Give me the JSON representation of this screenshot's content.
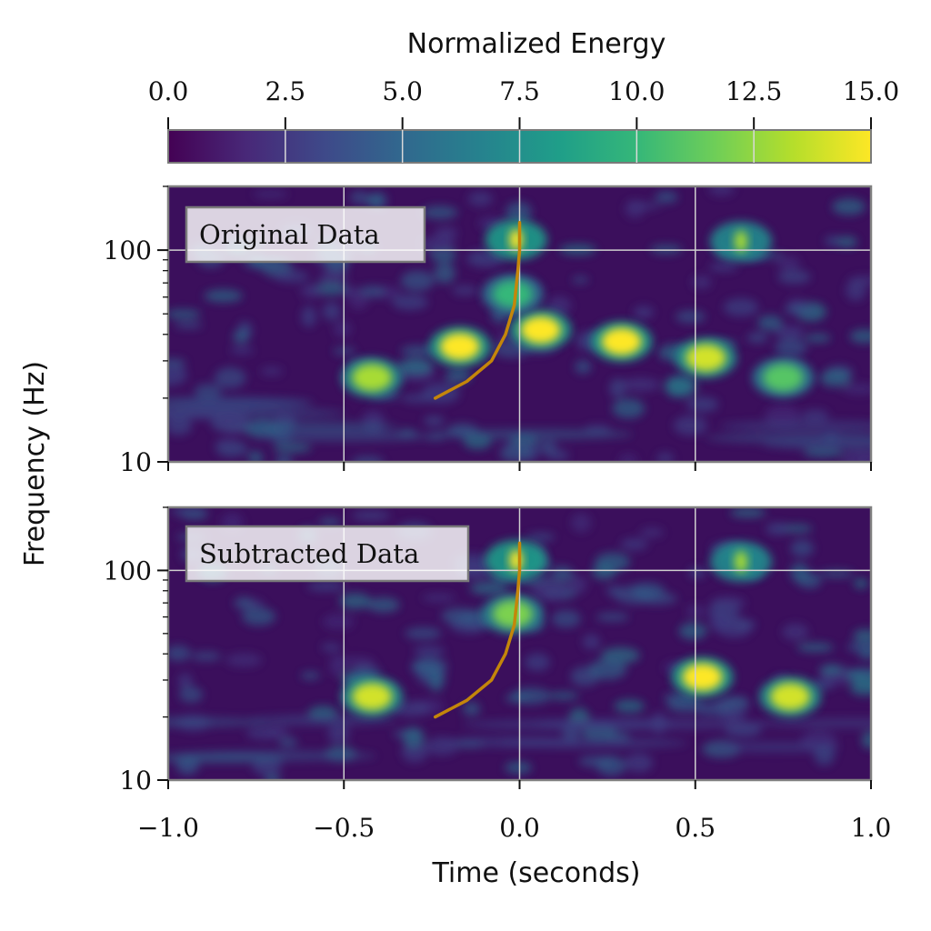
{
  "colorbar": {
    "label": "Normalized Energy",
    "ticks": [
      "0.0",
      "2.5",
      "5.0",
      "7.5",
      "10.0",
      "12.5",
      "15.0"
    ],
    "min": 0,
    "max": 15,
    "colormap": [
      "#440154",
      "#482878",
      "#3e4989",
      "#31688e",
      "#26828e",
      "#1f9e89",
      "#35b779",
      "#6ece58",
      "#b5de2b",
      "#fde725"
    ]
  },
  "axes": {
    "xlabel": "Time (seconds)",
    "ylabel": "Frequency (Hz)",
    "x_ticks": [
      "−1.0",
      "−0.5",
      "0.0",
      "0.5",
      "1.0"
    ],
    "y_ticks": [
      "10",
      "100"
    ]
  },
  "panels": [
    {
      "label": "Original Data"
    },
    {
      "label": "Subtracted Data"
    }
  ],
  "chart_data": {
    "type": "heatmap",
    "title": "",
    "xlabel": "Time (seconds)",
    "ylabel": "Frequency (Hz)",
    "xlim": [
      -1.0,
      1.0
    ],
    "ylim": [
      10,
      200
    ],
    "yscale": "log",
    "grid": true,
    "colorbar": {
      "label": "Normalized Energy",
      "range": [
        0,
        15
      ],
      "colormap": "viridis"
    },
    "chirp_track": {
      "color": "#c4860a",
      "points": [
        [
          -0.24,
          20
        ],
        [
          -0.15,
          24
        ],
        [
          -0.08,
          30
        ],
        [
          -0.04,
          40
        ],
        [
          -0.015,
          55
        ],
        [
          -0.005,
          80
        ],
        [
          0.0,
          100
        ],
        [
          0.0,
          135
        ]
      ]
    },
    "panels": [
      {
        "label": "Original Data",
        "blobs": [
          {
            "t": -0.42,
            "f": 25,
            "v": 13
          },
          {
            "t": -0.17,
            "f": 35,
            "v": 15
          },
          {
            "t": 0.06,
            "f": 42,
            "v": 15
          },
          {
            "t": 0.29,
            "f": 37,
            "v": 15
          },
          {
            "t": 0.53,
            "f": 31,
            "v": 14
          },
          {
            "t": 0.75,
            "f": 25,
            "v": 11
          },
          {
            "t": -0.01,
            "f": 112,
            "v": 15
          },
          {
            "t": 0.63,
            "f": 110,
            "v": 13
          },
          {
            "t": -0.02,
            "f": 62,
            "v": 10
          }
        ]
      },
      {
        "label": "Subtracted Data",
        "blobs": [
          {
            "t": -0.42,
            "f": 25,
            "v": 14
          },
          {
            "t": 0.52,
            "f": 31,
            "v": 15
          },
          {
            "t": 0.77,
            "f": 25,
            "v": 14
          },
          {
            "t": -0.01,
            "f": 112,
            "v": 15
          },
          {
            "t": 0.63,
            "f": 110,
            "v": 13
          },
          {
            "t": -0.02,
            "f": 62,
            "v": 12
          }
        ]
      }
    ]
  }
}
